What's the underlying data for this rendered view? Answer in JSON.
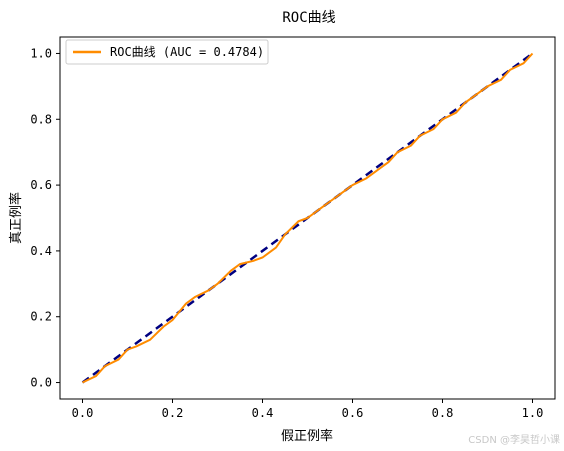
{
  "chart_data": {
    "type": "line",
    "title": "ROC曲线",
    "xlabel": "假正例率",
    "ylabel": "真正例率",
    "xlim": [
      -0.05,
      1.05
    ],
    "ylim": [
      -0.05,
      1.05
    ],
    "xticks": [
      "0.0",
      "0.2",
      "0.4",
      "0.6",
      "0.8",
      "1.0"
    ],
    "yticks": [
      "0.0",
      "0.2",
      "0.4",
      "0.6",
      "0.8",
      "1.0"
    ],
    "grid": false,
    "legend_position": "top-left",
    "series": [
      {
        "name": "ROC曲线 (AUC = 0.4784)",
        "color": "#ff8c00",
        "style": "solid",
        "x": [
          0.0,
          0.03,
          0.05,
          0.08,
          0.1,
          0.12,
          0.15,
          0.18,
          0.2,
          0.23,
          0.25,
          0.28,
          0.3,
          0.33,
          0.35,
          0.38,
          0.4,
          0.43,
          0.45,
          0.48,
          0.5,
          0.53,
          0.55,
          0.58,
          0.6,
          0.63,
          0.65,
          0.68,
          0.7,
          0.73,
          0.75,
          0.78,
          0.8,
          0.83,
          0.85,
          0.88,
          0.9,
          0.93,
          0.95,
          0.98,
          1.0
        ],
        "y": [
          0.0,
          0.02,
          0.05,
          0.07,
          0.1,
          0.11,
          0.13,
          0.17,
          0.19,
          0.24,
          0.26,
          0.28,
          0.3,
          0.34,
          0.36,
          0.37,
          0.38,
          0.41,
          0.45,
          0.49,
          0.5,
          0.53,
          0.55,
          0.58,
          0.6,
          0.62,
          0.64,
          0.67,
          0.7,
          0.72,
          0.75,
          0.77,
          0.8,
          0.82,
          0.85,
          0.88,
          0.9,
          0.92,
          0.95,
          0.97,
          1.0
        ]
      },
      {
        "name": "",
        "color": "#000080",
        "style": "dashed",
        "x": [
          0.0,
          1.0
        ],
        "y": [
          0.0,
          1.0
        ]
      }
    ]
  },
  "watermark": "CSDN @李昊哲小课"
}
